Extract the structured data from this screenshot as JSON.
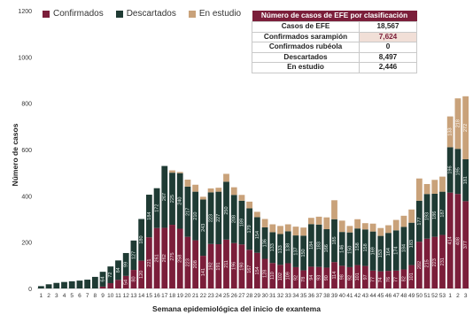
{
  "chart_data": {
    "type": "bar",
    "stacked": true,
    "xlabel": "Semana epidemiológica del inicio de exantema",
    "ylabel": "Número de casos",
    "ylim": [
      0,
      1200
    ],
    "yticks": [
      0,
      200,
      400,
      600,
      800,
      1000,
      1200
    ],
    "grid": false,
    "legend_position": "top-left",
    "categories": [
      "1",
      "2",
      "3",
      "4",
      "5",
      "6",
      "7",
      "8",
      "9",
      "10",
      "11",
      "12",
      "13",
      "14",
      "15",
      "16",
      "17",
      "18",
      "19",
      "20",
      "21",
      "22",
      "23",
      "24",
      "25",
      "26",
      "27",
      "28",
      "29",
      "30",
      "31",
      "32",
      "33",
      "34",
      "35",
      "36",
      "37",
      "38",
      "39",
      "40",
      "41",
      "42",
      "43",
      "44",
      "45",
      "46",
      "47",
      "48",
      "49",
      "50",
      "51",
      "52",
      "53",
      "1",
      "2",
      "3"
    ],
    "series": [
      {
        "name": "Confirmados",
        "color": "#7b1e3a",
        "values": [
          0,
          0,
          0,
          0,
          0,
          0,
          0,
          0,
          8,
          23,
          37,
          54,
          80,
          120,
          221,
          261,
          262,
          275,
          258,
          223,
          208,
          141,
          192,
          191,
          211,
          196,
          190,
          167,
          154,
          128,
          110,
          102,
          109,
          92,
          78,
          94,
          93,
          90,
          114,
          98,
          92,
          101,
          97,
          77,
          74,
          76,
          77,
          82,
          101,
          202,
          215,
          223,
          231,
          414,
          408,
          377
        ]
      },
      {
        "name": "Descartados",
        "color": "#1f3b34",
        "values": [
          10,
          18,
          24,
          28,
          31,
          34,
          38,
          50,
          64,
          72,
          84,
          99,
          127,
          180,
          184,
          172,
          267,
          225,
          240,
          217,
          210,
          243,
          223,
          227,
          250,
          208,
          189,
          179,
          154,
          136,
          133,
          133,
          138,
          137,
          150,
          184,
          183,
          166,
          185,
          146,
          150,
          158,
          158,
          169,
          153,
          164,
          174,
          184,
          183,
          177,
          193,
          186,
          187,
          196,
          195,
          181
        ]
      },
      {
        "name": "En estudio",
        "color": "#c9a27a",
        "values": [
          0,
          0,
          0,
          0,
          0,
          0,
          0,
          0,
          0,
          0,
          0,
          0,
          0,
          0,
          0,
          0,
          0,
          10,
          5,
          30,
          30,
          12,
          17,
          17,
          34,
          33,
          25,
          29,
          23,
          36,
          34,
          35,
          30,
          38,
          35,
          27,
          34,
          51,
          82,
          49,
          28,
          40,
          27,
          34,
          34,
          33,
          45,
          48,
          57,
          96,
          43,
          60,
          65,
          133,
          218,
          272
        ]
      }
    ],
    "value_labels": {
      "Confirmados": [
        "",
        "",
        "",
        "",
        "",
        "",
        "",
        "",
        "8",
        "23",
        "37",
        "54",
        "80",
        "120",
        "221",
        "261",
        "262",
        "275",
        "258",
        "223",
        "208",
        "141",
        "192",
        "191",
        "211",
        "196",
        "190",
        "167",
        "154",
        "128",
        "110",
        "102",
        "109",
        "92",
        "78",
        "94",
        "93",
        "90",
        "114",
        "98",
        "92",
        "101",
        "97",
        "77",
        "74",
        "76",
        "77",
        "82",
        "101",
        "202",
        "215",
        "223",
        "231",
        "414",
        "408",
        "377"
      ],
      "Descartados": [
        "",
        "",
        "",
        "",
        "",
        "",
        "",
        "",
        "64",
        "72",
        "84",
        "99",
        "127",
        "180",
        "184",
        "172",
        "267",
        "225",
        "240",
        "217",
        "210",
        "243",
        "223",
        "227",
        "250",
        "208",
        "189",
        "179",
        "154",
        "136",
        "133",
        "133",
        "138",
        "137",
        "150",
        "184",
        "183",
        "166",
        "185",
        "146",
        "150",
        "158",
        "158",
        "169",
        "153",
        "164",
        "174",
        "184",
        "183",
        "177",
        "193",
        "186",
        "187",
        "196",
        "195",
        "181"
      ],
      "En estudio": [
        "",
        "",
        "",
        "",
        "",
        "",
        "",
        "",
        "",
        "",
        "",
        "",
        "",
        "",
        "",
        "",
        "",
        "",
        "",
        "",
        "",
        "",
        "",
        "",
        "",
        "",
        "",
        "",
        "",
        "",
        "",
        "",
        "",
        "",
        "",
        "",
        "",
        "",
        "",
        "",
        "",
        "",
        "",
        "",
        "",
        "",
        "",
        "",
        "",
        "",
        "",
        "",
        "",
        "133",
        "218",
        "272"
      ]
    }
  },
  "legend": [
    {
      "label": "Confirmados",
      "color": "#7b1e3a"
    },
    {
      "label": "Descartados",
      "color": "#1f3b34"
    },
    {
      "label": "En estudio",
      "color": "#c9a27a"
    }
  ],
  "summary_table": {
    "title": "Número de casos de EFE por clasificación",
    "rows": [
      {
        "label": "Casos de EFE",
        "value": "18,567",
        "highlight": false
      },
      {
        "label": "Confirmados sarampión",
        "value": "7,624",
        "highlight": true
      },
      {
        "label": "Confirmados rubéola",
        "value": "0",
        "highlight": false
      },
      {
        "label": "Descartados",
        "value": "8,497",
        "highlight": false
      },
      {
        "label": "En estudio",
        "value": "2,446",
        "highlight": false
      }
    ]
  }
}
